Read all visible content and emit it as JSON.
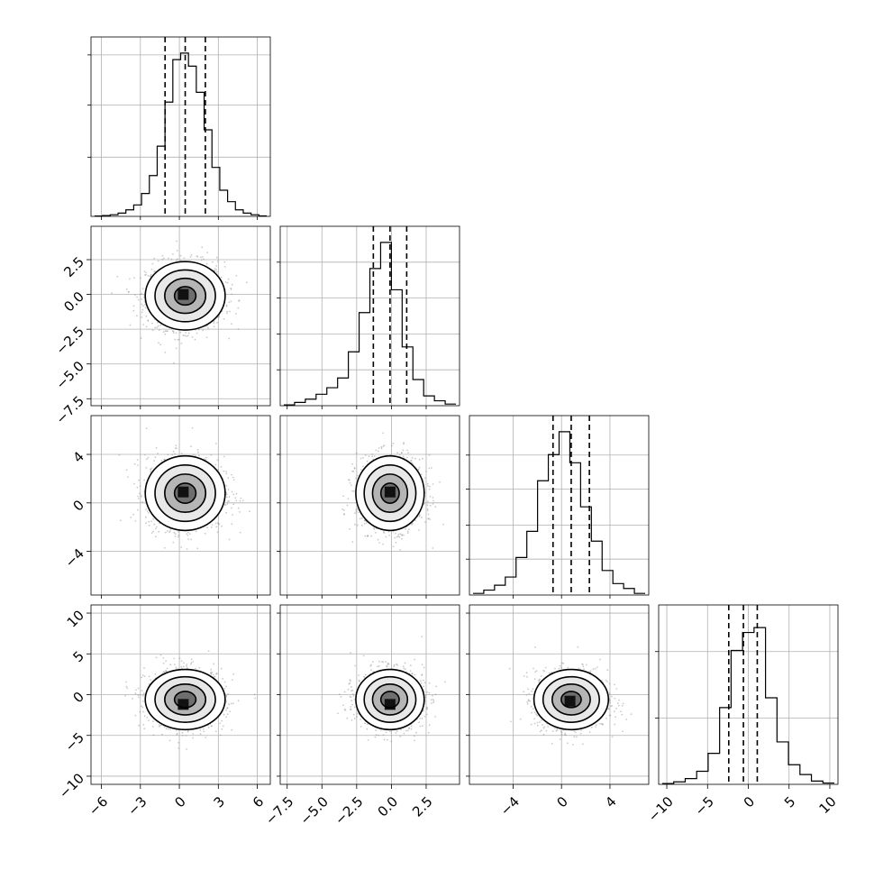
{
  "chart_data": {
    "type": "corner",
    "grid": true,
    "parameters": [
      {
        "range": [
          -6.8,
          7.0
        ],
        "ticks": [
          -6,
          -3,
          0,
          3,
          6
        ],
        "tick_labels": [
          "−6",
          "−3",
          "0",
          "3",
          "6"
        ],
        "quantiles": [
          -1.1,
          0.45,
          2.0
        ],
        "histogram": [
          0.2,
          0.5,
          1,
          2,
          4,
          7,
          14,
          25,
          43,
          70,
          96,
          100,
          92,
          76,
          53,
          30,
          16,
          9,
          4,
          2,
          1,
          0.3
        ],
        "hist_ticks": [
          0.33,
          0.62,
          0.9
        ]
      },
      {
        "range": [
          -8.0,
          4.9
        ],
        "ticks": [
          -7.5,
          -5.0,
          -2.5,
          0.0,
          2.5
        ],
        "tick_labels": [
          "−7.5",
          "−5.0",
          "−2.5",
          "0.0",
          "2.5"
        ],
        "quantiles": [
          -1.3,
          -0.1,
          1.1
        ],
        "histogram": [
          0.5,
          2,
          4,
          7,
          11,
          17,
          33,
          57,
          84,
          100,
          71,
          36,
          16,
          6,
          3,
          1
        ],
        "hist_ticks": [
          0.2,
          0.4,
          0.6,
          0.8
        ]
      },
      {
        "range": [
          -7.6,
          7.2
        ],
        "ticks": [
          -4,
          0,
          4
        ],
        "tick_labels": [
          "−4",
          "0",
          "4"
        ],
        "quantiles": [
          -0.7,
          0.8,
          2.3
        ],
        "histogram": [
          1,
          3,
          6,
          11,
          23,
          39,
          70,
          86,
          100,
          81,
          54,
          33,
          15,
          7,
          4,
          1
        ],
        "hist_ticks": [
          0.2,
          0.39,
          0.59,
          0.78
        ]
      },
      {
        "range": [
          -11.0,
          11.0
        ],
        "ticks": [
          -10,
          -5,
          0,
          5,
          10
        ],
        "tick_labels": [
          "−10",
          "−5",
          "0",
          "5",
          "10"
        ],
        "quantiles": [
          -2.4,
          -0.6,
          1.1
        ],
        "histogram": [
          0.5,
          1.5,
          3.5,
          8,
          19,
          47,
          82,
          93,
          96,
          53,
          26,
          12,
          6,
          2,
          0.8
        ],
        "hist_ticks": [
          0.37,
          0.74
        ]
      }
    ],
    "joint": [
      {
        "row": 1,
        "col": 0,
        "center": [
          0.45,
          -0.1
        ],
        "spread": [
          1.5,
          1.2
        ],
        "peak": [
          0.3,
          0.0
        ]
      },
      {
        "row": 2,
        "col": 0,
        "center": [
          0.45,
          0.8
        ],
        "spread": [
          1.5,
          1.5
        ],
        "peak": [
          0.3,
          0.9
        ]
      },
      {
        "row": 2,
        "col": 1,
        "center": [
          -0.1,
          0.8
        ],
        "spread": [
          1.2,
          1.5
        ],
        "peak": [
          -0.1,
          0.9
        ]
      },
      {
        "row": 3,
        "col": 0,
        "center": [
          0.45,
          -0.6
        ],
        "spread": [
          1.5,
          1.8
        ],
        "peak": [
          0.3,
          -1.2
        ]
      },
      {
        "row": 3,
        "col": 1,
        "center": [
          -0.1,
          -0.6
        ],
        "spread": [
          1.2,
          1.8
        ],
        "peak": [
          -0.1,
          -1.2
        ]
      },
      {
        "row": 3,
        "col": 2,
        "center": [
          0.8,
          -0.6
        ],
        "spread": [
          1.5,
          1.8
        ],
        "peak": [
          0.7,
          -0.8
        ]
      }
    ]
  }
}
